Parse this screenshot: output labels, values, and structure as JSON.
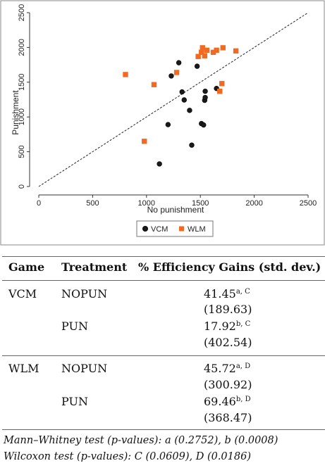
{
  "chart_data": {
    "type": "scatter",
    "xlabel": "No punishment",
    "ylabel": "Punishment",
    "xlim": [
      0,
      2500
    ],
    "ylim": [
      0,
      2500
    ],
    "xticks": [
      0,
      500,
      1000,
      1500,
      2000,
      2500
    ],
    "yticks": [
      0,
      500,
      1000,
      1500,
      2000,
      2500
    ],
    "grid": false,
    "legend_position": "bottom",
    "reference_line": {
      "style": "dashed",
      "from": [
        0,
        0
      ],
      "to": [
        2500,
        2500
      ]
    },
    "series": [
      {
        "name": "VCM",
        "marker": "circle",
        "color": "#1a1a1a",
        "points": [
          [
            1120,
            325
          ],
          [
            1420,
            595
          ],
          [
            1200,
            890
          ],
          [
            1510,
            905
          ],
          [
            1530,
            885
          ],
          [
            1400,
            1095
          ],
          [
            1540,
            1240
          ],
          [
            1545,
            1280
          ],
          [
            1350,
            1245
          ],
          [
            1330,
            1360
          ],
          [
            1545,
            1370
          ],
          [
            1650,
            1410
          ],
          [
            1230,
            1590
          ],
          [
            1470,
            1730
          ],
          [
            1300,
            1780
          ]
        ]
      },
      {
        "name": "WLM",
        "marker": "square",
        "color": "#f26a21",
        "points": [
          [
            805,
            1610
          ],
          [
            980,
            650
          ],
          [
            1070,
            1465
          ],
          [
            1280,
            1640
          ],
          [
            1480,
            1870
          ],
          [
            1510,
            1930
          ],
          [
            1520,
            1995
          ],
          [
            1540,
            1880
          ],
          [
            1560,
            1960
          ],
          [
            1620,
            1930
          ],
          [
            1650,
            1960
          ],
          [
            1680,
            1370
          ],
          [
            1700,
            1480
          ],
          [
            1710,
            1995
          ],
          [
            1830,
            1950
          ]
        ]
      }
    ]
  },
  "table": {
    "headers": [
      "Game",
      "Treatment",
      "% Efficiency Gains (std. dev.)"
    ],
    "rows": [
      {
        "game": "VCM",
        "treatment": "NOPUN",
        "value": "41.45",
        "sup": "a, C",
        "sd": "(189.63)"
      },
      {
        "game": "",
        "treatment": "PUN",
        "value": "17.92",
        "sup": "b, C",
        "sd": "(402.54)"
      },
      {
        "game": "WLM",
        "treatment": "NOPUN",
        "value": "45.72",
        "sup": "a, D",
        "sd": "(300.92)"
      },
      {
        "game": "",
        "treatment": "PUN",
        "value": "69.46",
        "sup": "b, D",
        "sd": "(368.47)"
      }
    ],
    "notes": [
      "Mann–Whitney test (p-values): a (0.2752), b (0.0008)",
      "Wilcoxon test (p-values): C (0.0609), D (0.0186)"
    ]
  }
}
